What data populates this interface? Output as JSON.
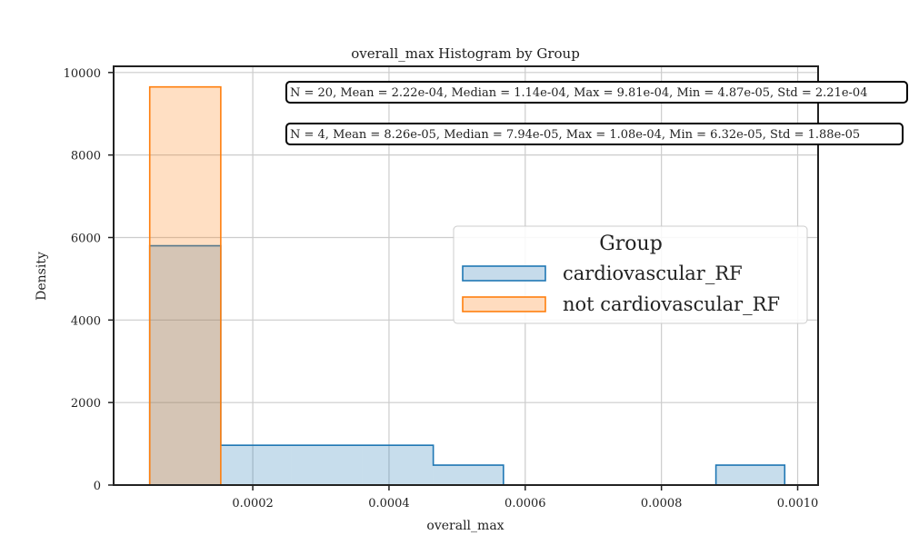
{
  "chart_data": {
    "type": "bar",
    "title": "overall_max Histogram by Group",
    "xlabel": "overall_max",
    "ylabel": "Density",
    "xlim": [
      -4.3e-06,
      0.00103
    ],
    "ylim": [
      0,
      10150
    ],
    "xticks": [
      0.0002,
      0.0004,
      0.0006,
      0.0008,
      0.001
    ],
    "xtick_labels": [
      "0.0002",
      "0.0004",
      "0.0006",
      "0.0008",
      "0.0010"
    ],
    "yticks": [
      0,
      2000,
      4000,
      6000,
      8000,
      10000
    ],
    "ytick_labels": [
      "0",
      "2000",
      "4000",
      "6000",
      "8000",
      "10000"
    ],
    "grid": true,
    "legend": {
      "title": "Group",
      "position": "center-right",
      "entries": [
        "cardiovascular_RF",
        "not cardiovascular_RF"
      ]
    },
    "series": [
      {
        "name": "cardiovascular_RF",
        "color": "#1f77b4",
        "fill": "#c6dbeb",
        "bins": [
          {
            "x0": 4.87e-05,
            "x1": 0.000153,
            "value": 5800
          },
          {
            "x0": 0.000153,
            "x1": 0.000257,
            "value": 965
          },
          {
            "x0": 0.000257,
            "x1": 0.000361,
            "value": 965
          },
          {
            "x0": 0.000361,
            "x1": 0.000465,
            "value": 965
          },
          {
            "x0": 0.000465,
            "x1": 0.000568,
            "value": 482
          },
          {
            "x0": 0.000568,
            "x1": 0.000672,
            "value": 0
          },
          {
            "x0": 0.000672,
            "x1": 0.000776,
            "value": 0
          },
          {
            "x0": 0.000776,
            "x1": 0.00088,
            "value": 0
          },
          {
            "x0": 0.00088,
            "x1": 0.000981,
            "value": 482
          }
        ]
      },
      {
        "name": "not cardiovascular_RF",
        "color": "#ff7f0e",
        "fill": "#ffdcbf",
        "bins": [
          {
            "x0": 4.87e-05,
            "x1": 0.000153,
            "value": 9650
          }
        ]
      }
    ],
    "annotations": [
      "N = 20, Mean = 2.22e-04, Median = 1.14e-04, Max = 9.81e-04, Min = 4.87e-05, Std = 2.21e-04",
      "N = 4, Mean = 8.26e-05, Median = 7.94e-05, Max = 1.08e-04, Min = 6.32e-05, Std = 1.88e-05"
    ]
  }
}
